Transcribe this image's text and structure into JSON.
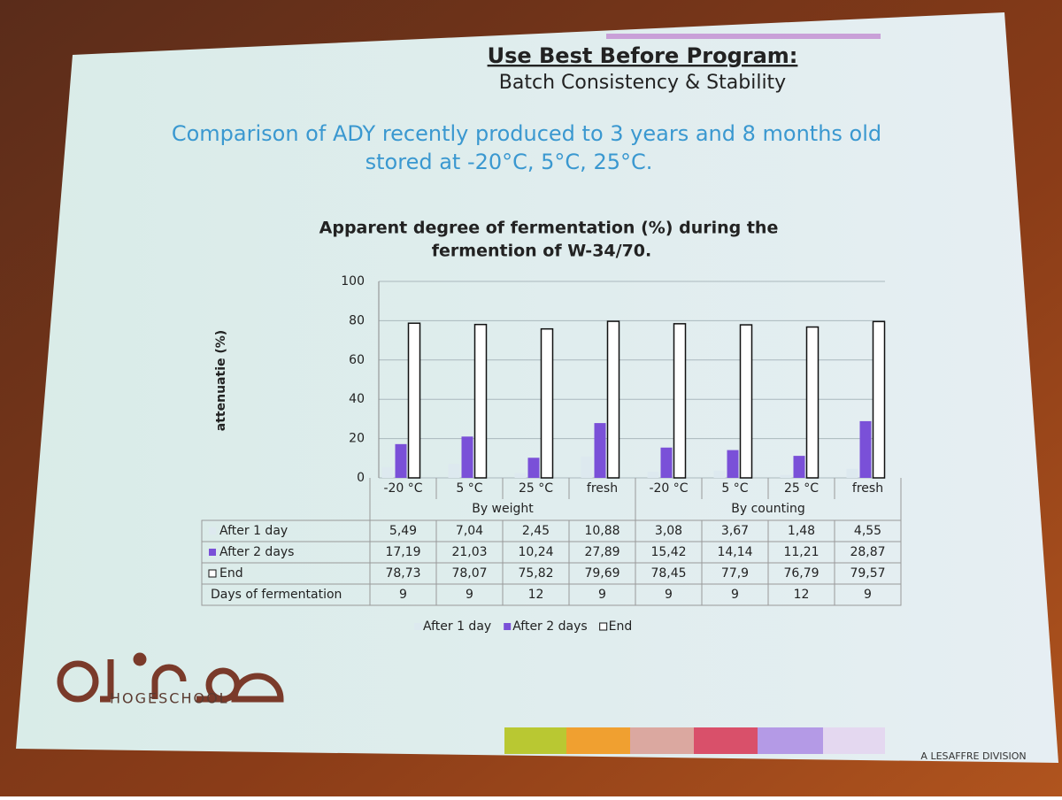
{
  "slide": {
    "heading": "Use Best Before Program:",
    "subheading": "Batch Consistency & Stability",
    "subtitle": [
      "Comparison of ADY recently produced to 3 years and 8 months old",
      "stored at -20°C, 5°C, 25°C."
    ],
    "logo": "HOGESCHOOL",
    "footer": "A LESAFFRE DIVISION"
  },
  "chart_data": {
    "type": "bar",
    "title": [
      "Apparent degree of fermentation (%) during the",
      "fermention of W-34/70."
    ],
    "ylabel": "attenuatie (%)",
    "categories": [
      "-20 °C",
      "5 °C",
      "25 °C",
      "fresh",
      "-20 °C",
      "5 °C",
      "25 °C",
      "fresh"
    ],
    "groups": [
      "By weight",
      "By counting"
    ],
    "series": [
      {
        "name": "After 1 day",
        "color": "#dde9ef",
        "values": [
          5.49,
          7.04,
          2.45,
          10.88,
          3.08,
          3.67,
          1.48,
          4.55
        ],
        "value_labels": [
          "5,49",
          "7,04",
          "2,45",
          "10,88",
          "3,08",
          "3,67",
          "1,48",
          "4,55"
        ]
      },
      {
        "name": "After 2 days",
        "color": "#7a50d8",
        "values": [
          17.19,
          21.03,
          10.24,
          27.89,
          15.42,
          14.14,
          11.21,
          28.87
        ],
        "value_labels": [
          "17,19",
          "21,03",
          "10,24",
          "27,89",
          "15,42",
          "14,14",
          "11,21",
          "28,87"
        ]
      },
      {
        "name": "End",
        "color": "#ffffff",
        "values": [
          78.73,
          78.07,
          75.82,
          79.69,
          78.45,
          77.9,
          76.79,
          79.57
        ],
        "value_labels": [
          "78,73",
          "78,07",
          "75,82",
          "79,69",
          "78,45",
          "77,9",
          "76,79",
          "79,57"
        ]
      }
    ],
    "table_rows": [
      {
        "name": "Days of fermentation",
        "values": [
          9,
          9,
          12,
          9,
          9,
          9,
          12,
          9
        ]
      }
    ],
    "ylim": [
      0,
      100
    ],
    "yticks": [
      0,
      20,
      40,
      60,
      80,
      100
    ],
    "grid": true,
    "legend": "bottom"
  }
}
